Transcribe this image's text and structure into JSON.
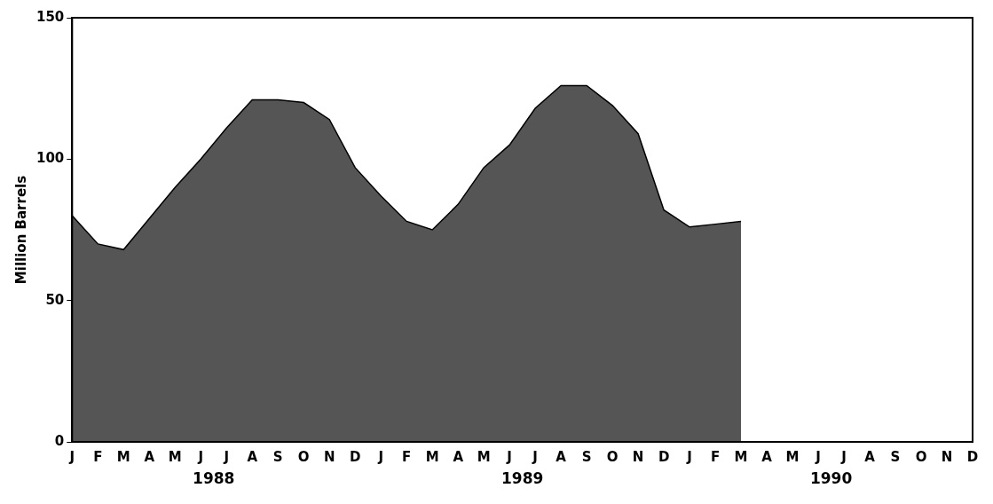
{
  "chart_data": {
    "type": "area",
    "ylabel": "Million Barrels",
    "categories": [
      "J",
      "F",
      "M",
      "A",
      "M",
      "J",
      "J",
      "A",
      "S",
      "O",
      "N",
      "D",
      "J",
      "F",
      "M",
      "A",
      "M",
      "J",
      "J",
      "A",
      "S",
      "O",
      "N",
      "D",
      "J",
      "F",
      "M",
      "A",
      "M",
      "J",
      "J",
      "A",
      "S",
      "O",
      "N",
      "D"
    ],
    "series": [
      {
        "color": "#555555",
        "values": [
          80,
          70,
          68,
          79,
          90,
          100,
          111,
          121,
          121,
          120,
          114,
          97,
          87,
          78,
          75,
          84,
          97,
          105,
          118,
          126,
          126,
          119,
          109,
          82,
          76,
          77,
          78,
          null,
          null,
          null,
          null,
          null,
          null,
          null,
          null,
          null
        ]
      }
    ],
    "annotations": [
      "1988",
      "1989",
      "1990"
    ],
    "ylim": [
      0,
      150
    ],
    "yticks": [
      0,
      50,
      100,
      150
    ],
    "grid": false,
    "legend": false
  }
}
